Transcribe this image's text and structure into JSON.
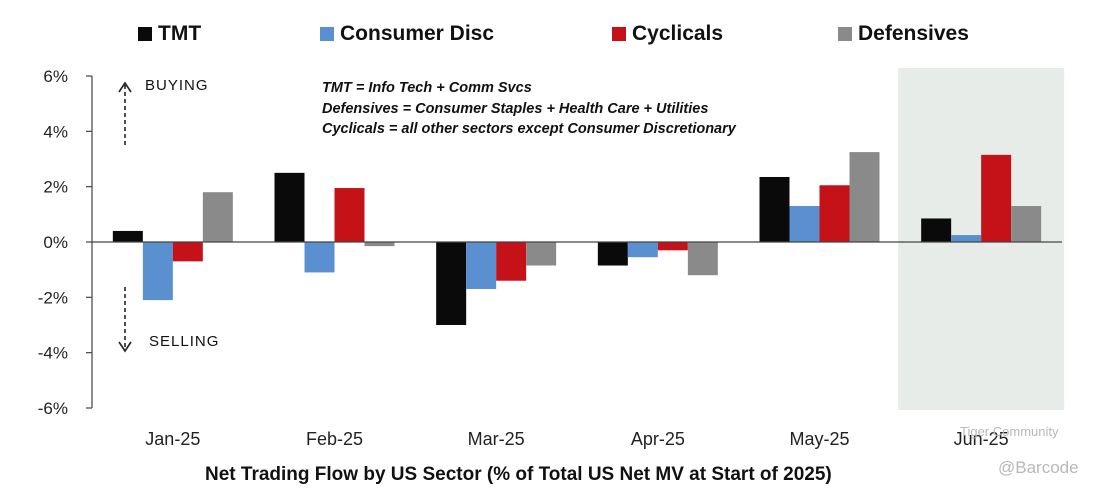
{
  "chart_data": {
    "type": "bar",
    "xlabel": "Net Trading Flow by US Sector (% of Total US Net MV at Start of 2025)",
    "ylabel": "",
    "categories": [
      "Jan-25",
      "Feb-25",
      "Mar-25",
      "Apr-25",
      "May-25",
      "Jun-25"
    ],
    "highlighted_category": "Jun-25",
    "ylim": [
      -6,
      6
    ],
    "yticks": [
      6,
      4,
      2,
      0,
      -2,
      -4,
      -6
    ],
    "ytick_labels": [
      "6%",
      "4%",
      "2%",
      "0%",
      "-2%",
      "-4%",
      "-6%"
    ],
    "legend_placement": "top",
    "grid": false,
    "series": [
      {
        "name": "TMT",
        "color": "#0a0a0a",
        "values": [
          0.4,
          2.5,
          -3.0,
          -0.85,
          2.35,
          0.85
        ]
      },
      {
        "name": "Consumer Disc",
        "color": "#5a8fd0",
        "values": [
          -2.1,
          -1.1,
          -1.7,
          -0.55,
          1.3,
          0.25
        ]
      },
      {
        "name": "Cyclicals",
        "color": "#c41218",
        "values": [
          -0.7,
          1.95,
          -1.4,
          -0.3,
          2.05,
          3.15
        ]
      },
      {
        "name": "Defensives",
        "color": "#8a8a8a",
        "values": [
          1.8,
          -0.15,
          -0.85,
          -1.2,
          3.25,
          1.3
        ]
      }
    ],
    "annotations": {
      "notes": [
        "TMT = Info Tech + Comm Svcs",
        "Defensives = Consumer Staples + Health Care + Utilities",
        "Cyclicals = all other sectors except Consumer Discretionary"
      ],
      "buying": "BUYING",
      "selling": "SELLING"
    }
  },
  "watermark": {
    "community": "Tiger Community",
    "handle": "@Barcode"
  }
}
